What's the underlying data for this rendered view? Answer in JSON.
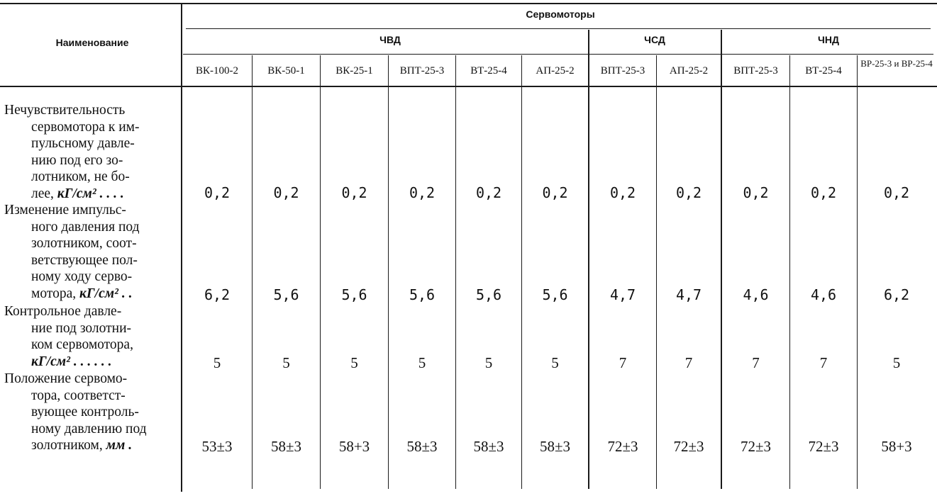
{
  "header": {
    "name_col": "Наименование",
    "group_title": "Сервомоторы",
    "subgroups": [
      "ЧВД",
      "ЧСД",
      "ЧНД"
    ],
    "columns": [
      "ВК-100-2",
      "ВК-50-1",
      "ВК-25-1",
      "ВПТ-25-3",
      "ВТ-25-4",
      "АП-25-2",
      "ВПТ-25-3",
      "АП-25-2",
      "ВПТ-25-3",
      "ВТ-25-4",
      "ВР-25-3 и ВР-25-4"
    ]
  },
  "rows": [
    {
      "label_lines": [
        "Нечувствительность",
        "сервомотора к им-",
        "пульсному давле-",
        "нию под его зо-",
        "лотником, не бо-",
        "лее, "
      ],
      "unit": "кГ/см² . . . .",
      "values": [
        "0,2",
        "0,2",
        "0,2",
        "0,2",
        "0,2",
        "0,2",
        "0,2",
        "0,2",
        "0,2",
        "0,2",
        "0,2"
      ]
    },
    {
      "label_lines": [
        "Изменение импульс-",
        "ного давления под",
        "золотником, соот-",
        "ветствующее пол-",
        "ному ходу серво-",
        "мотора, "
      ],
      "unit": "кГ/см² . .",
      "values": [
        "6,2",
        "5,6",
        "5,6",
        "5,6",
        "5,6",
        "5,6",
        "4,7",
        "4,7",
        "4,6",
        "4,6",
        "6,2"
      ]
    },
    {
      "label_lines": [
        "Контрольное давле-",
        "ние под золотни-",
        "ком сервомотора,",
        ""
      ],
      "unit": "кГ/см² . . . . . .",
      "values": [
        "5",
        "5",
        "5",
        "5",
        "5",
        "5",
        "7",
        "7",
        "7",
        "7",
        "5"
      ]
    },
    {
      "label_lines": [
        "Положение сервомо-",
        "тора, соответст-",
        "вующее контроль-",
        "ному давлению под",
        "золотником, "
      ],
      "unit": "мм .",
      "values": [
        "53±3",
        "58±3",
        "58+3",
        "58±3",
        "58±3",
        "58±3",
        "72±3",
        "72±3",
        "72±3",
        "72±3",
        "58+3"
      ]
    }
  ]
}
